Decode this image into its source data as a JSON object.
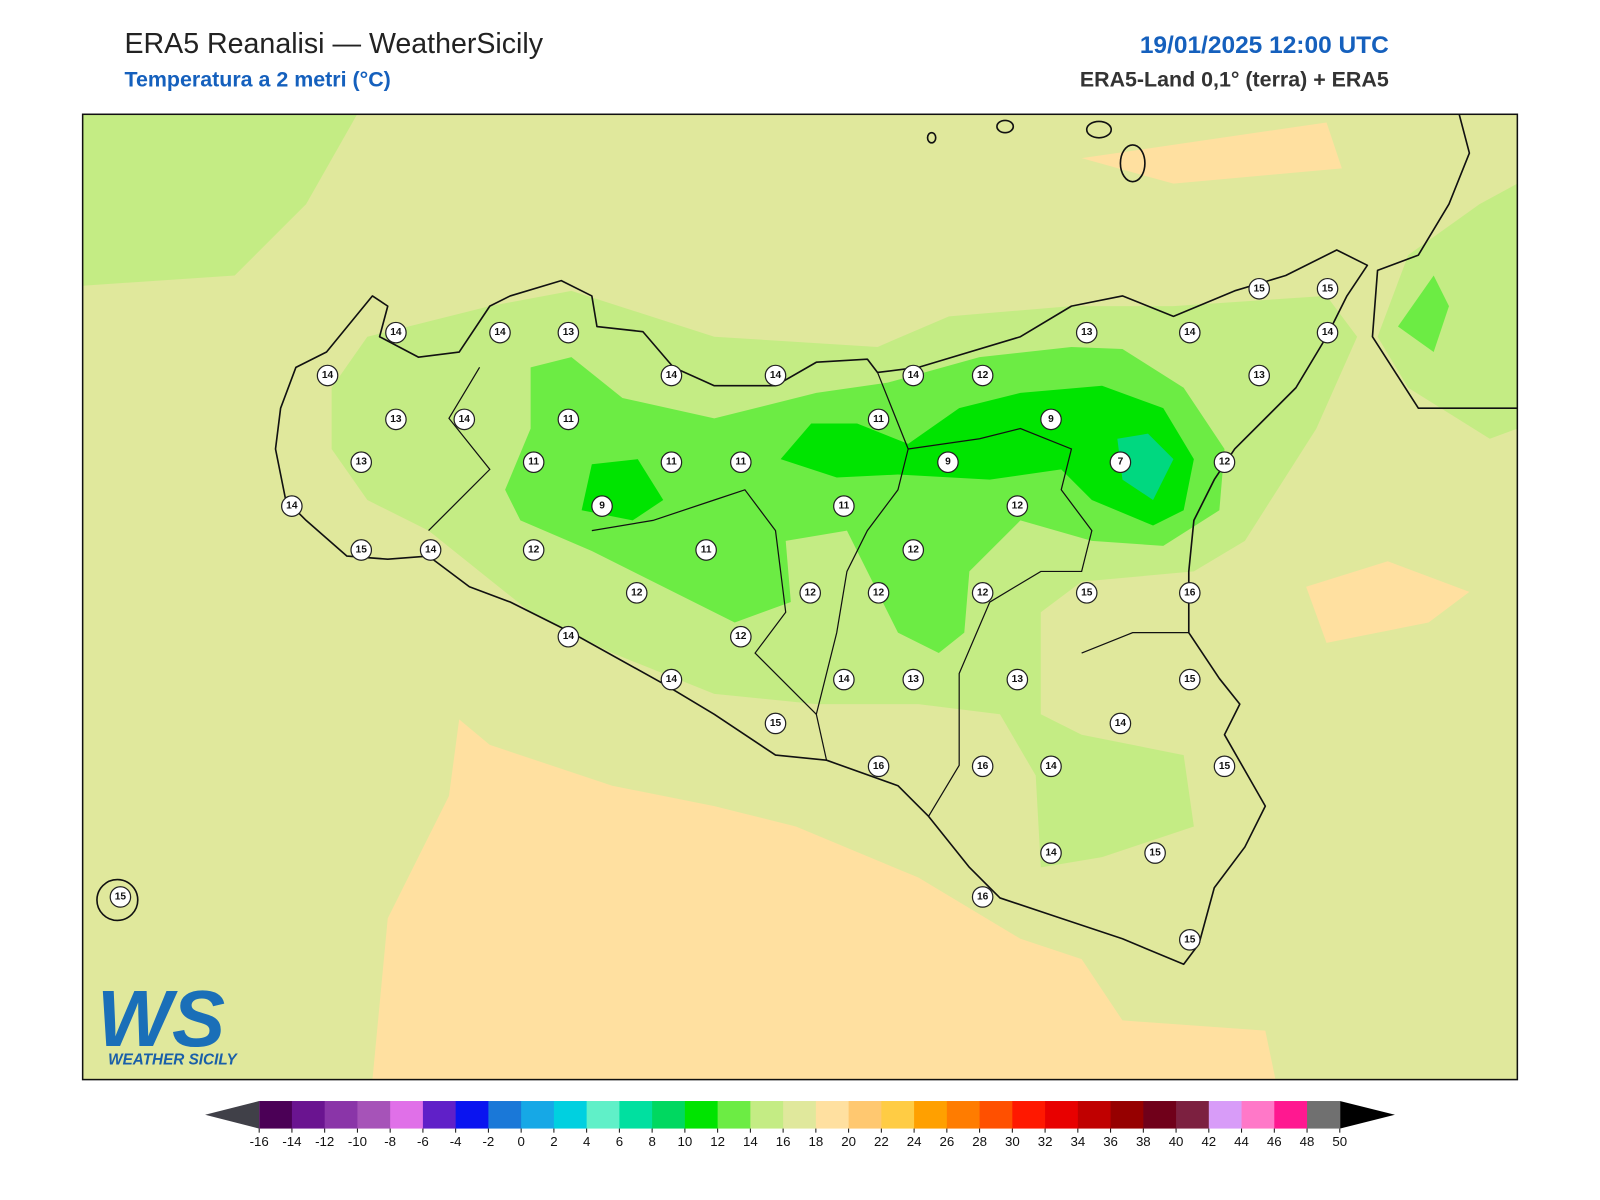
{
  "header": {
    "title": "ERA5 Reanalisi — WeatherSicily",
    "subtitle": "Temperatura a 2 metri (°C)",
    "date": "19/01/2025 12:00 UTC",
    "source": "ERA5-Land 0,1° (terra) + ERA5"
  },
  "stations": [
    14,
    14,
    13,
    14,
    13,
    14,
    11,
    14,
    14,
    13,
    11,
    11,
    11,
    9,
    14,
    15,
    14,
    12,
    11,
    11,
    11,
    14,
    12,
    9,
    9,
    13,
    14,
    15,
    15,
    14,
    13,
    7,
    12,
    12,
    12,
    12,
    12,
    12,
    12,
    15,
    16,
    14,
    12,
    14,
    14,
    13,
    13,
    15,
    15,
    14,
    16,
    16,
    14,
    15,
    14,
    15,
    16,
    15,
    15
  ],
  "colorbar": {
    "ticks": [
      -16,
      -14,
      -12,
      -10,
      -8,
      -6,
      -4,
      -2,
      0,
      2,
      4,
      6,
      8,
      10,
      12,
      14,
      16,
      18,
      20,
      22,
      24,
      26,
      28,
      30,
      32,
      34,
      36,
      38,
      40,
      42,
      44,
      46,
      48,
      50
    ],
    "colors": [
      "#4b0056",
      "#6a1490",
      "#8a35a8",
      "#a653b8",
      "#e070e8",
      "#6020c8",
      "#0a14f0",
      "#1a78d8",
      "#16a8e6",
      "#00d0e0",
      "#60f0c8",
      "#00e0a0",
      "#00d860",
      "#00e400",
      "#6cec44",
      "#c4ec84",
      "#e0e89c",
      "#ffe0a0",
      "#ffc870",
      "#ffcc44",
      "#ffa000",
      "#ff7c00",
      "#ff5000",
      "#ff1800",
      "#e80000",
      "#c00000",
      "#960000",
      "#70001a",
      "#7c2040",
      "#d89cf8",
      "#ff78c8",
      "#ff1890",
      "#707070"
    ],
    "under_color": "#404048",
    "over_color": "#000000"
  },
  "logo": {
    "text": "WS",
    "caption": "WEATHER SICILY"
  }
}
